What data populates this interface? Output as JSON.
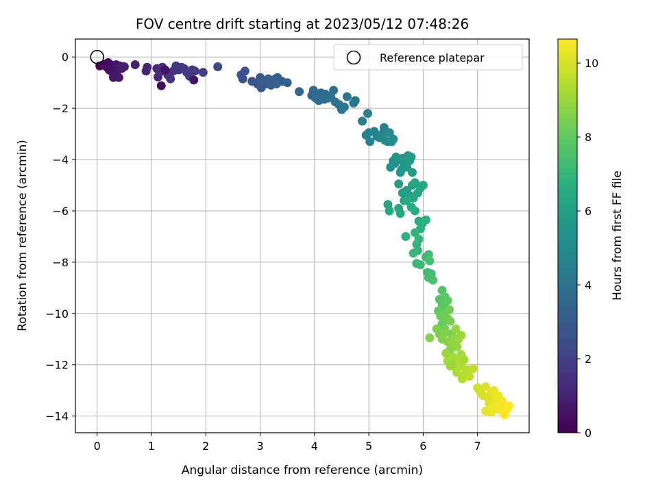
{
  "chart_data": {
    "type": "scatter",
    "title": "FOV centre drift starting at 2023/05/12 07:48:26",
    "xlabel": "Angular distance from reference (arcmin)",
    "ylabel": "Rotation from reference (arcmin)",
    "xlim": [
      -0.4,
      7.95
    ],
    "ylim": [
      -14.65,
      0.7
    ],
    "xticks": [
      "0",
      "1",
      "2",
      "3",
      "4",
      "5",
      "6",
      "7"
    ],
    "yticks": [
      "0",
      "−2",
      "−4",
      "−6",
      "−8",
      "−10",
      "−12",
      "−14"
    ],
    "grid": true,
    "legend": {
      "placement": "top-right",
      "entries": [
        "Reference platepar"
      ]
    },
    "colorbar": {
      "label": "Hours from first FF file",
      "range": [
        0,
        10.65
      ],
      "ticks": [
        "0",
        "2",
        "4",
        "6",
        "8",
        "10"
      ],
      "colormap": "viridis"
    },
    "reference_point": {
      "x": 0.0,
      "y": 0.0,
      "label": "Reference platepar"
    },
    "points": [
      [
        0.05,
        -0.35,
        0.1
      ],
      [
        0.12,
        -0.3,
        0.2
      ],
      [
        0.18,
        -0.4,
        0.3
      ],
      [
        0.2,
        -0.22,
        0.3
      ],
      [
        0.22,
        -0.5,
        0.4
      ],
      [
        0.25,
        -0.3,
        0.4
      ],
      [
        0.28,
        -0.6,
        0.5
      ],
      [
        0.3,
        -0.4,
        0.5
      ],
      [
        0.33,
        -0.7,
        0.6
      ],
      [
        0.35,
        -0.3,
        0.6
      ],
      [
        0.38,
        -0.5,
        0.7
      ],
      [
        0.4,
        -0.8,
        0.7
      ],
      [
        0.42,
        -0.35,
        0.8
      ],
      [
        0.45,
        -0.45,
        0.8
      ],
      [
        0.48,
        -0.4,
        0.9
      ],
      [
        0.5,
        -0.38,
        0.9
      ],
      [
        0.3,
        -0.8,
        0.6
      ],
      [
        0.7,
        -0.3,
        1.0
      ],
      [
        0.9,
        -0.55,
        1.1
      ],
      [
        0.92,
        -0.4,
        1.1
      ],
      [
        1.1,
        -0.45,
        1.2
      ],
      [
        1.12,
        -0.78,
        1.2
      ],
      [
        1.15,
        -0.6,
        1.3
      ],
      [
        1.2,
        -0.4,
        1.3
      ],
      [
        1.25,
        -0.55,
        1.4
      ],
      [
        1.3,
        -0.7,
        1.4
      ],
      [
        1.35,
        -0.85,
        1.5
      ],
      [
        1.4,
        -0.55,
        1.5
      ],
      [
        1.45,
        -0.35,
        1.6
      ],
      [
        1.5,
        -0.5,
        1.6
      ],
      [
        1.55,
        -0.4,
        1.7
      ],
      [
        1.6,
        -0.45,
        1.7
      ],
      [
        1.65,
        -0.6,
        1.8
      ],
      [
        1.7,
        -0.75,
        1.8
      ],
      [
        1.75,
        -0.5,
        1.9
      ],
      [
        1.8,
        -0.55,
        1.9
      ],
      [
        1.95,
        -0.6,
        2.0
      ],
      [
        1.18,
        -1.12,
        0.4
      ],
      [
        1.78,
        -0.9,
        0.6
      ],
      [
        1.25,
        -0.5,
        0.5
      ],
      [
        2.22,
        -0.38,
        2.4
      ],
      [
        2.65,
        -0.7,
        2.6
      ],
      [
        2.68,
        -0.85,
        2.6
      ],
      [
        2.72,
        -0.55,
        2.7
      ],
      [
        2.85,
        -0.95,
        2.8
      ],
      [
        2.95,
        -1.05,
        2.9
      ],
      [
        3.0,
        -0.8,
        2.9
      ],
      [
        3.02,
        -1.2,
        3.0
      ],
      [
        3.05,
        -0.95,
        3.0
      ],
      [
        3.1,
        -1.05,
        3.0
      ],
      [
        3.15,
        -0.85,
        3.1
      ],
      [
        3.2,
        -1.1,
        3.1
      ],
      [
        3.22,
        -0.95,
        3.1
      ],
      [
        3.28,
        -0.85,
        3.2
      ],
      [
        3.3,
        -1.05,
        3.2
      ],
      [
        3.32,
        -0.8,
        3.2
      ],
      [
        3.4,
        -0.95,
        3.3
      ],
      [
        3.5,
        -1.0,
        3.3
      ],
      [
        3.72,
        -1.35,
        3.5
      ],
      [
        3.95,
        -1.5,
        3.6
      ],
      [
        3.98,
        -1.3,
        3.6
      ],
      [
        4.02,
        -1.6,
        3.7
      ],
      [
        4.05,
        -1.45,
        3.7
      ],
      [
        4.08,
        -1.7,
        3.7
      ],
      [
        4.12,
        -1.4,
        3.8
      ],
      [
        4.15,
        -1.55,
        3.8
      ],
      [
        4.18,
        -1.65,
        3.8
      ],
      [
        4.2,
        -1.45,
        3.9
      ],
      [
        4.25,
        -1.6,
        3.9
      ],
      [
        4.3,
        -1.55,
        3.9
      ],
      [
        4.35,
        -1.3,
        4.0
      ],
      [
        4.38,
        -1.75,
        4.0
      ],
      [
        4.45,
        -1.85,
        4.1
      ],
      [
        4.5,
        -2.05,
        4.1
      ],
      [
        4.55,
        -1.95,
        4.2
      ],
      [
        4.6,
        -1.55,
        4.2
      ],
      [
        4.72,
        -1.8,
        4.3
      ],
      [
        4.75,
        -1.7,
        4.3
      ],
      [
        4.88,
        -2.5,
        4.5
      ],
      [
        4.98,
        -2.2,
        4.5
      ],
      [
        4.95,
        -3.05,
        4.6
      ],
      [
        5.0,
        -2.95,
        4.6
      ],
      [
        5.02,
        -3.3,
        4.7
      ],
      [
        5.1,
        -2.9,
        4.7
      ],
      [
        5.15,
        -3.1,
        4.8
      ],
      [
        5.2,
        -3.15,
        4.8
      ],
      [
        5.25,
        -3.0,
        4.9
      ],
      [
        5.28,
        -2.75,
        4.9
      ],
      [
        5.3,
        -3.25,
        5.0
      ],
      [
        5.35,
        -3.3,
        5.0
      ],
      [
        5.38,
        -2.95,
        5.0
      ],
      [
        5.42,
        -3.3,
        5.1
      ],
      [
        5.45,
        -3.2,
        5.1
      ],
      [
        5.4,
        -4.3,
        5.3
      ],
      [
        5.45,
        -4.05,
        5.3
      ],
      [
        5.48,
        -4.15,
        5.4
      ],
      [
        5.5,
        -3.9,
        5.4
      ],
      [
        5.55,
        -4.0,
        5.5
      ],
      [
        5.58,
        -4.5,
        5.5
      ],
      [
        5.6,
        -4.4,
        5.6
      ],
      [
        5.62,
        -3.95,
        5.6
      ],
      [
        5.65,
        -4.2,
        5.6
      ],
      [
        5.68,
        -4.05,
        5.7
      ],
      [
        5.7,
        -4.3,
        5.7
      ],
      [
        5.72,
        -3.85,
        5.7
      ],
      [
        5.75,
        -4.05,
        5.8
      ],
      [
        5.78,
        -3.9,
        5.8
      ],
      [
        5.8,
        -4.5,
        5.9
      ],
      [
        5.55,
        -4.95,
        5.8
      ],
      [
        5.62,
        -5.3,
        5.9
      ],
      [
        5.65,
        -5.6,
        6.0
      ],
      [
        5.7,
        -5.2,
        6.0
      ],
      [
        5.75,
        -5.4,
        6.1
      ],
      [
        5.8,
        -5.0,
        6.1
      ],
      [
        5.82,
        -5.5,
        6.2
      ],
      [
        5.85,
        -4.9,
        6.2
      ],
      [
        5.9,
        -5.3,
        6.3
      ],
      [
        5.95,
        -5.1,
        6.3
      ],
      [
        6.0,
        -5.0,
        6.4
      ],
      [
        5.35,
        -5.75,
        6.2
      ],
      [
        5.38,
        -6.0,
        6.3
      ],
      [
        5.55,
        -5.9,
        6.4
      ],
      [
        5.58,
        -6.1,
        6.4
      ],
      [
        5.7,
        -5.6,
        6.5
      ],
      [
        5.78,
        -5.85,
        6.5
      ],
      [
        5.85,
        -6.0,
        6.6
      ],
      [
        5.92,
        -6.4,
        6.6
      ],
      [
        5.95,
        -6.7,
        6.7
      ],
      [
        6.05,
        -6.35,
        6.7
      ],
      [
        5.98,
        -6.5,
        6.8
      ],
      [
        5.68,
        -7.0,
        6.8
      ],
      [
        5.85,
        -6.85,
        6.9
      ],
      [
        5.88,
        -7.3,
        6.9
      ],
      [
        5.92,
        -7.1,
        7.0
      ],
      [
        5.9,
        -7.55,
        7.0
      ],
      [
        5.82,
        -7.65,
        7.1
      ],
      [
        5.88,
        -8.05,
        7.1
      ],
      [
        5.95,
        -8.1,
        7.2
      ],
      [
        6.05,
        -7.8,
        7.2
      ],
      [
        6.08,
        -8.4,
        7.3
      ],
      [
        6.1,
        -7.7,
        7.3
      ],
      [
        6.1,
        -8.6,
        7.4
      ],
      [
        6.15,
        -8.45,
        7.4
      ],
      [
        6.12,
        -7.95,
        7.5
      ],
      [
        6.18,
        -8.7,
        7.5
      ],
      [
        6.35,
        -9.1,
        7.7
      ],
      [
        6.3,
        -9.45,
        7.8
      ],
      [
        6.35,
        -9.65,
        7.8
      ],
      [
        6.4,
        -9.35,
        7.9
      ],
      [
        6.42,
        -9.8,
        7.9
      ],
      [
        6.45,
        -9.5,
        8.0
      ],
      [
        6.28,
        -9.9,
        8.0
      ],
      [
        6.32,
        -10.1,
        8.1
      ],
      [
        6.35,
        -10.4,
        8.1
      ],
      [
        6.38,
        -10.0,
        8.2
      ],
      [
        6.4,
        -10.6,
        8.2
      ],
      [
        6.45,
        -10.2,
        8.3
      ],
      [
        6.48,
        -9.85,
        8.3
      ],
      [
        6.5,
        -10.3,
        8.4
      ],
      [
        6.52,
        -10.8,
        8.4
      ],
      [
        6.25,
        -10.6,
        8.5
      ],
      [
        6.3,
        -10.8,
        8.5
      ],
      [
        6.35,
        -11.0,
        8.6
      ],
      [
        6.4,
        -10.75,
        8.6
      ],
      [
        6.45,
        -11.1,
        8.7
      ],
      [
        6.5,
        -11.4,
        8.7
      ],
      [
        6.55,
        -11.2,
        8.8
      ],
      [
        6.58,
        -10.95,
        8.8
      ],
      [
        6.6,
        -10.6,
        8.9
      ],
      [
        6.62,
        -11.3,
        8.9
      ],
      [
        6.65,
        -11.0,
        9.0
      ],
      [
        6.7,
        -10.85,
        9.0
      ],
      [
        6.12,
        -10.95,
        8.6
      ],
      [
        6.42,
        -11.55,
        9.0
      ],
      [
        6.45,
        -11.85,
        9.1
      ],
      [
        6.5,
        -12.05,
        9.1
      ],
      [
        6.55,
        -11.7,
        9.2
      ],
      [
        6.6,
        -12.1,
        9.2
      ],
      [
        6.62,
        -12.3,
        9.3
      ],
      [
        6.65,
        -11.9,
        9.3
      ],
      [
        6.7,
        -12.05,
        9.4
      ],
      [
        6.72,
        -12.55,
        9.4
      ],
      [
        6.78,
        -12.35,
        9.5
      ],
      [
        6.82,
        -12.2,
        9.5
      ],
      [
        6.85,
        -12.45,
        9.6
      ],
      [
        6.92,
        -12.15,
        9.6
      ],
      [
        6.7,
        -11.6,
        9.1
      ],
      [
        6.75,
        -11.8,
        9.2
      ],
      [
        6.52,
        -12.0,
        9.0
      ],
      [
        7.0,
        -12.9,
        9.9
      ],
      [
        7.05,
        -13.05,
        10.0
      ],
      [
        7.1,
        -13.2,
        10.0
      ],
      [
        7.15,
        -12.85,
        10.1
      ],
      [
        7.2,
        -13.3,
        10.1
      ],
      [
        7.22,
        -13.5,
        10.2
      ],
      [
        7.25,
        -13.1,
        10.2
      ],
      [
        7.3,
        -13.0,
        10.3
      ],
      [
        7.32,
        -13.4,
        10.3
      ],
      [
        7.35,
        -13.6,
        10.4
      ],
      [
        7.38,
        -13.2,
        10.4
      ],
      [
        7.4,
        -13.75,
        10.5
      ],
      [
        7.42,
        -13.55,
        10.5
      ],
      [
        7.45,
        -13.4,
        10.5
      ],
      [
        7.48,
        -13.85,
        10.6
      ],
      [
        7.5,
        -13.95,
        10.6
      ],
      [
        7.55,
        -13.7,
        10.6
      ],
      [
        7.58,
        -13.6,
        10.6
      ],
      [
        7.15,
        -13.8,
        10.3
      ],
      [
        7.25,
        -13.85,
        10.4
      ],
      [
        7.3,
        -13.7,
        10.4
      ]
    ]
  }
}
